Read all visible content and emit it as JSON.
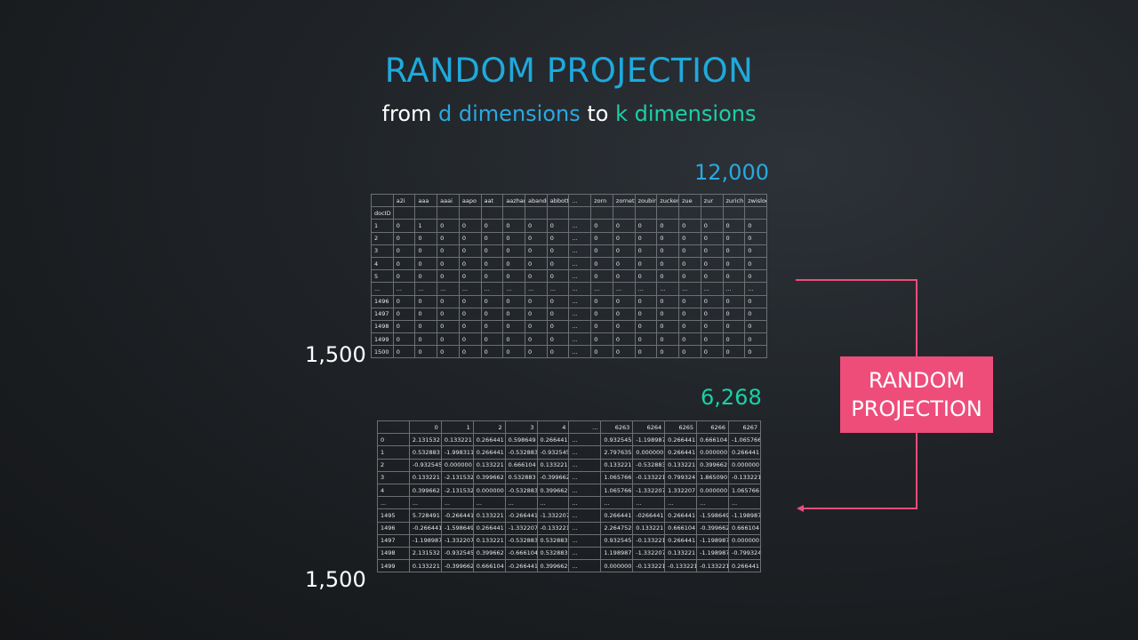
{
  "title": "RANDOM PROJECTION",
  "subtitle": {
    "from": "from",
    "d_dims": "d dimensions",
    "to": "to",
    "k_dims": "k dimensions"
  },
  "labels": {
    "d_count": "12,000",
    "k_count": "6,268",
    "rows_top": "1,500",
    "rows_bottom": "1,500"
  },
  "box": {
    "line1": "RANDOM",
    "line2": "PROJECTION"
  },
  "colors": {
    "title": "#1fa9dc",
    "d": "#2aa9e0",
    "k": "#1ccfa6",
    "box": "#ee4d7a"
  },
  "table1": {
    "columns": [
      "a2i",
      "aaa",
      "aaai",
      "aapo",
      "aat",
      "aazhang",
      "abandonment",
      "abbott",
      "...",
      "zorn",
      "zornetzer",
      "zoubin",
      "zucker",
      "zue",
      "zur",
      "zurich",
      "zwislocki"
    ],
    "index_name": "docID",
    "rows": [
      [
        "1",
        "0",
        "1",
        "0",
        "0",
        "0",
        "0",
        "0",
        "0",
        "...",
        "0",
        "0",
        "0",
        "0",
        "0",
        "0",
        "0",
        "0"
      ],
      [
        "2",
        "0",
        "0",
        "0",
        "0",
        "0",
        "0",
        "0",
        "0",
        "...",
        "0",
        "0",
        "0",
        "0",
        "0",
        "0",
        "0",
        "0"
      ],
      [
        "3",
        "0",
        "0",
        "0",
        "0",
        "0",
        "0",
        "0",
        "0",
        "...",
        "0",
        "0",
        "0",
        "0",
        "0",
        "0",
        "0",
        "0"
      ],
      [
        "4",
        "0",
        "0",
        "0",
        "0",
        "0",
        "0",
        "0",
        "0",
        "...",
        "0",
        "0",
        "0",
        "0",
        "0",
        "0",
        "0",
        "0"
      ],
      [
        "5",
        "0",
        "0",
        "0",
        "0",
        "0",
        "0",
        "0",
        "0",
        "...",
        "0",
        "0",
        "0",
        "0",
        "0",
        "0",
        "0",
        "0"
      ],
      [
        "...",
        "...",
        "...",
        "...",
        "...",
        "...",
        "...",
        "...",
        "...",
        "...",
        "...",
        "...",
        "...",
        "...",
        "...",
        "...",
        "...",
        "..."
      ],
      [
        "1496",
        "0",
        "0",
        "0",
        "0",
        "0",
        "0",
        "0",
        "0",
        "...",
        "0",
        "0",
        "0",
        "0",
        "0",
        "0",
        "0",
        "0"
      ],
      [
        "1497",
        "0",
        "0",
        "0",
        "0",
        "0",
        "0",
        "0",
        "0",
        "...",
        "0",
        "0",
        "0",
        "0",
        "0",
        "0",
        "0",
        "0"
      ],
      [
        "1498",
        "0",
        "0",
        "0",
        "0",
        "0",
        "0",
        "0",
        "0",
        "...",
        "0",
        "0",
        "0",
        "0",
        "0",
        "0",
        "0",
        "0"
      ],
      [
        "1499",
        "0",
        "0",
        "0",
        "0",
        "0",
        "0",
        "0",
        "0",
        "...",
        "0",
        "0",
        "0",
        "0",
        "0",
        "0",
        "0",
        "0"
      ],
      [
        "1500",
        "0",
        "0",
        "0",
        "0",
        "0",
        "0",
        "0",
        "0",
        "...",
        "0",
        "0",
        "0",
        "0",
        "0",
        "0",
        "0",
        "0"
      ]
    ]
  },
  "table2": {
    "columns": [
      "0",
      "1",
      "2",
      "3",
      "4",
      "...",
      "6263",
      "6264",
      "6265",
      "6266",
      "6267"
    ],
    "rows": [
      [
        "0",
        "2.131532",
        "0.133221",
        "0.266441",
        "0.598649",
        "0.266441",
        "...",
        "0.932545",
        "-1.198987",
        "0.266441",
        "0.666104",
        "-1.065766"
      ],
      [
        "1",
        "0.532883",
        "-1.998311",
        "0.266441",
        "-0.532883",
        "-0.932545",
        "...",
        "2.797635",
        "0.000000",
        "0.266441",
        "0.000000",
        "0.266441"
      ],
      [
        "2",
        "-0.932545",
        "0.000000",
        "0.133221",
        "0.666104",
        "0.133221",
        "...",
        "0.133221",
        "-0.532883",
        "0.133221",
        "0.399662",
        "0.000000"
      ],
      [
        "3",
        "0.133221",
        "-2.131532",
        "0.399662",
        "0.532883",
        "-0.399662",
        "...",
        "1.065766",
        "-0.133221",
        "0.799324",
        "1.865090",
        "-0.133221"
      ],
      [
        "4",
        "0.399662",
        "-2.131532",
        "0.000000",
        "-0.532883",
        "0.399662",
        "...",
        "1.065766",
        "-1.332207",
        "1.332207",
        "0.000000",
        "1.065766"
      ],
      [
        "...",
        "...",
        "...",
        "...",
        "...",
        "...",
        "...",
        "...",
        "...",
        "...",
        "...",
        "..."
      ],
      [
        "1495",
        "5.728491",
        "-0.266441",
        "0.133221",
        "-0.266441",
        "-1.332207",
        "...",
        "0.266441",
        "-0266441",
        "0.266441",
        "-1.598649",
        "-1.198987"
      ],
      [
        "1496",
        "-0.266441",
        "-1.598649",
        "0.266441",
        "-1.332207",
        "-0.133221",
        "...",
        "2.264752",
        "0.133221",
        "0.666104",
        "-0.399662",
        "0.666104"
      ],
      [
        "1497",
        "-1.198987",
        "-1.332207",
        "0.133221",
        "-0.532883",
        "0.532883",
        "...",
        "0.932545",
        "-0.133221",
        "0.266441",
        "-1.198987",
        "0.000000"
      ],
      [
        "1498",
        "2.131532",
        "-0.932545",
        "0.399662",
        "-0.666104",
        "0.532883",
        "...",
        "1.198987",
        "-1.332207",
        "0.133221",
        "-1.198987",
        "-0.799324"
      ],
      [
        "1499",
        "0.133221",
        "-0.399662",
        "0.666104",
        "-0.266441",
        "0.399662",
        "...",
        "0.000000",
        "-0.133221",
        "-0.133221",
        "-0.133221",
        "0.266441"
      ]
    ]
  }
}
